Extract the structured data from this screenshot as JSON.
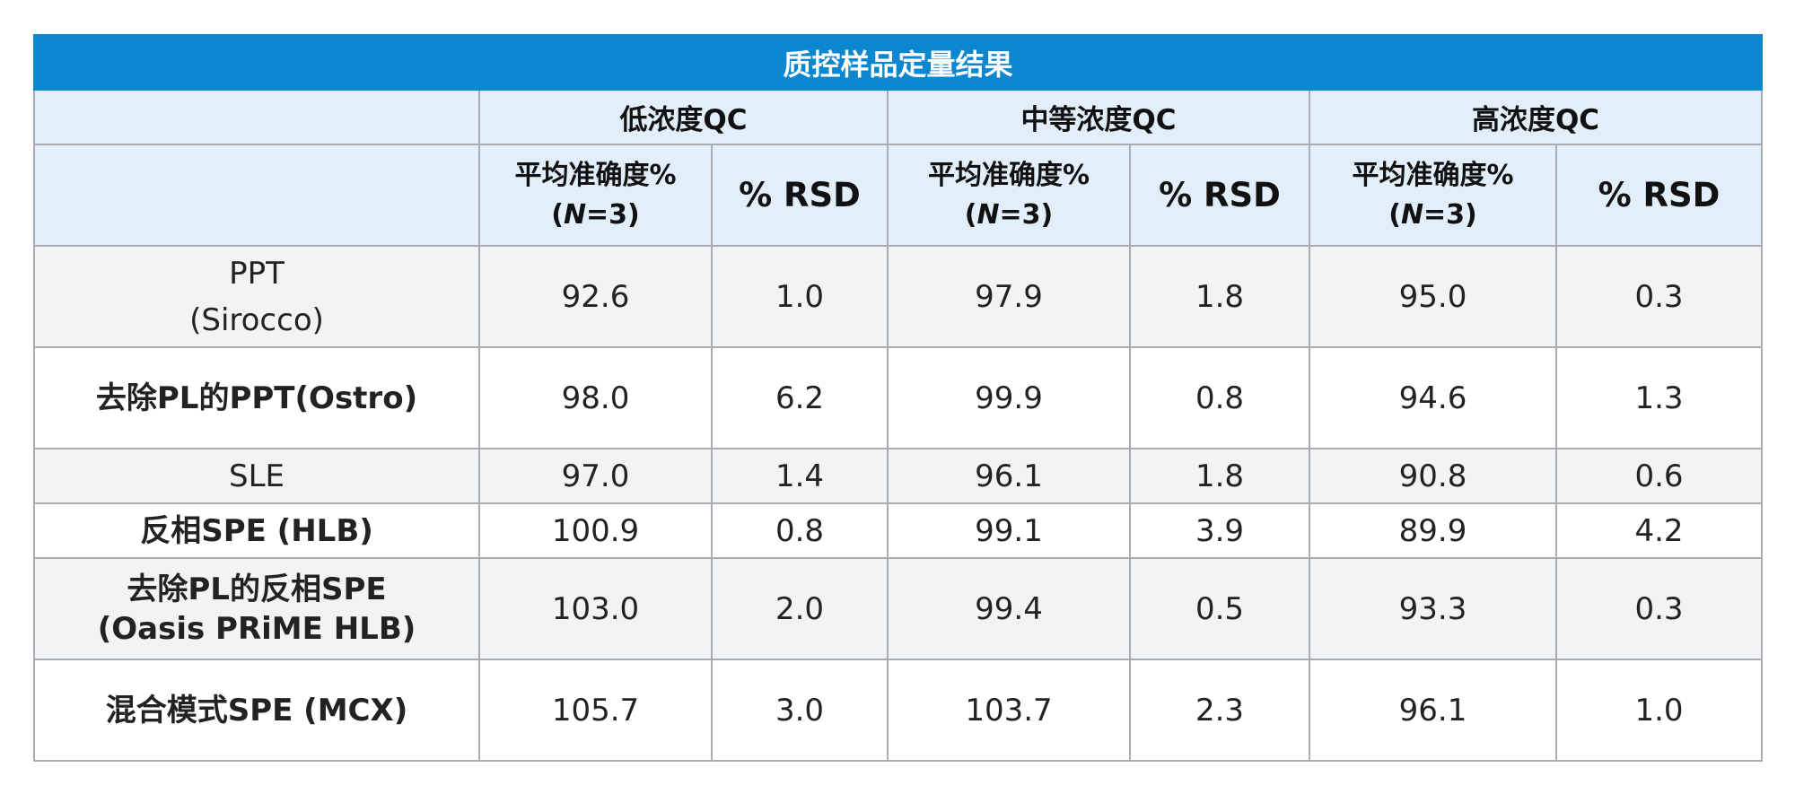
{
  "table": {
    "title": "质控样品定量结果",
    "groups": [
      "低浓度QC",
      "中等浓度QC",
      "高浓度QC"
    ],
    "sub_headers": {
      "accuracy_line1": "平均准确度%",
      "accuracy_line2_open": "(",
      "accuracy_line2_n": "N",
      "accuracy_line2_rest": "=3)",
      "rsd": "% RSD"
    },
    "rows": [
      {
        "method": [
          "PPT",
          "(Sirocco)"
        ],
        "values": [
          "92.6",
          "1.0",
          "97.9",
          "1.8",
          "95.0",
          "0.3"
        ]
      },
      {
        "method": [
          "去除PL的PPT(Ostro)"
        ],
        "values": [
          "98.0",
          "6.2",
          "99.9",
          "0.8",
          "94.6",
          "1.3"
        ]
      },
      {
        "method": [
          "SLE"
        ],
        "values": [
          "97.0",
          "1.4",
          "96.1",
          "1.8",
          "90.8",
          "0.6"
        ]
      },
      {
        "method": [
          "反相SPE (HLB)"
        ],
        "values": [
          "100.9",
          "0.8",
          "99.1",
          "3.9",
          "89.9",
          "4.2"
        ]
      },
      {
        "method": [
          "去除PL的反相SPE",
          "(Oasis PRiME HLB)"
        ],
        "values": [
          "103.0",
          "2.0",
          "99.4",
          "0.5",
          "93.3",
          "0.3"
        ]
      },
      {
        "method": [
          "混合模式SPE (MCX)"
        ],
        "values": [
          "105.7",
          "3.0",
          "103.7",
          "2.3",
          "96.1",
          "1.0"
        ]
      }
    ]
  }
}
